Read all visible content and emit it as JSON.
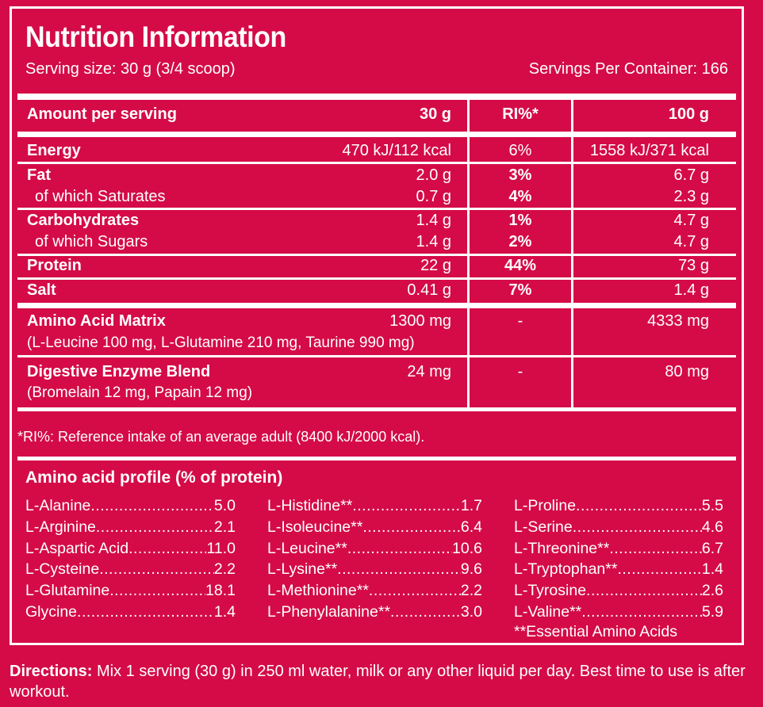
{
  "title": "Nutrition Information",
  "serving_size": "Serving size: 30 g (3/4 scoop)",
  "servings_per_container": "Servings Per Container: 166",
  "table": {
    "header": {
      "label": "Amount per serving",
      "col1": "30 g",
      "col2": "RI%*",
      "col3": "100 g"
    },
    "energy": {
      "label": "Energy",
      "v30": "470 kJ/112 kcal",
      "ri": "6%",
      "v100": "1558 kJ/371 kcal"
    },
    "fat": {
      "label": "Fat",
      "v30": "2.0 g",
      "ri": "3%",
      "v100": "6.7 g"
    },
    "saturates": {
      "label": "of which Saturates",
      "v30": "0.7 g",
      "ri": "4%",
      "v100": "2.3 g"
    },
    "carbohydrates": {
      "label": "Carbohydrates",
      "v30": "1.4 g",
      "ri": "1%",
      "v100": "4.7 g"
    },
    "sugars": {
      "label": "of which Sugars",
      "v30": "1.4 g",
      "ri": "2%",
      "v100": "4.7 g"
    },
    "protein": {
      "label": "Protein",
      "v30": "22 g",
      "ri": "44%",
      "v100": "73 g"
    },
    "salt": {
      "label": "Salt",
      "v30": "0.41 g",
      "ri": "7%",
      "v100": "1.4 g"
    },
    "amino_matrix": {
      "label": "Amino Acid Matrix",
      "sub": "(L-Leucine 100 mg, L-Glutamine 210 mg, Taurine 990 mg)",
      "v30": "1300 mg",
      "ri": "-",
      "v100": "4333 mg"
    },
    "enzyme_blend": {
      "label": "Digestive Enzyme Blend",
      "sub": "(Bromelain 12 mg, Papain 12 mg)",
      "v30": "24 mg",
      "ri": "-",
      "v100": "80 mg"
    }
  },
  "footnote": "*RI%: Reference intake of an average adult (8400 kJ/2000 kcal).",
  "amino_profile": {
    "title": "Amino acid profile (% of protein)",
    "col1": [
      {
        "name": "L-Alanine",
        "value": "5.0"
      },
      {
        "name": "L-Arginine",
        "value": "2.1"
      },
      {
        "name": "L-Aspartic Acid ",
        "value": "11.0"
      },
      {
        "name": "L-Cysteine ",
        "value": "2.2"
      },
      {
        "name": "L-Glutamine",
        "value": "18.1"
      },
      {
        "name": "Glycine ",
        "value": "1.4"
      }
    ],
    "col2": [
      {
        "name": "L-Histidine**",
        "value": "1.7"
      },
      {
        "name": "L-Isoleucine**",
        "value": "6.4"
      },
      {
        "name": "L-Leucine** ",
        "value": "10.6"
      },
      {
        "name": "L-Lysine**",
        "value": "9.6"
      },
      {
        "name": "L-Methionine** ",
        "value": "2.2"
      },
      {
        "name": "L-Phenylalanine**",
        "value": "3.0"
      }
    ],
    "col3": [
      {
        "name": "L-Proline",
        "value": "5.5"
      },
      {
        "name": "L-Serine ",
        "value": "4.6"
      },
      {
        "name": "L-Threonine**",
        "value": "6.7"
      },
      {
        "name": "L-Tryptophan** ",
        "value": "1.4"
      },
      {
        "name": "L-Tyrosine ",
        "value": "2.6"
      },
      {
        "name": "L-Valine** ",
        "value": "5.9"
      }
    ],
    "essential_note": "**Essential Amino Acids"
  },
  "directions": {
    "label": "Directions:",
    "text": " Mix 1 serving (30 g) in 250 ml water, milk or any other liquid per day. Best time to use is after workout."
  },
  "colors": {
    "background": "#d40b47",
    "foreground": "#ffffff"
  }
}
